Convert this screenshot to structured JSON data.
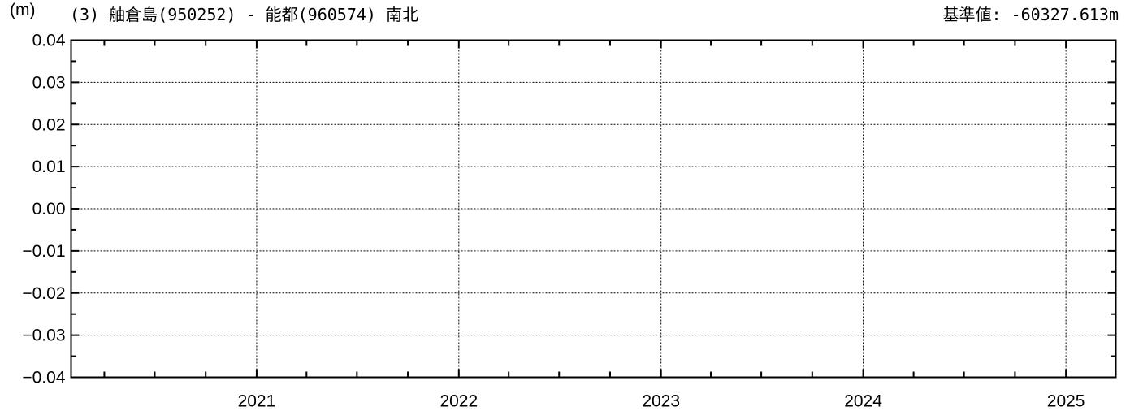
{
  "header": {
    "unit_label": "(m)",
    "title": "(3) 舳倉島(950252) - 能都(960574) 南北",
    "baseline": "基準値: -60327.613m"
  },
  "chart_data": {
    "type": "line",
    "title": "(3) 舳倉島(950252) - 能都(960574) 南北",
    "ylabel": "(m)",
    "xlabel": "",
    "reference_value": "基準値: -60327.613m",
    "ylim": [
      -0.04,
      0.04
    ],
    "xlim": [
      "2020-02-01",
      "2025-04-01"
    ],
    "y_ticks": [
      0.04,
      0.03,
      0.02,
      0.01,
      0.0,
      -0.01,
      -0.02,
      -0.03,
      -0.04
    ],
    "y_tick_labels": [
      "0.04",
      "0.03",
      "0.02",
      "0.01",
      "0.00",
      "−0.01",
      "−0.02",
      "−0.03",
      "−0.04"
    ],
    "x_ticks": [
      "2021",
      "2022",
      "2023",
      "2024",
      "2025"
    ],
    "grid": true,
    "series": []
  }
}
